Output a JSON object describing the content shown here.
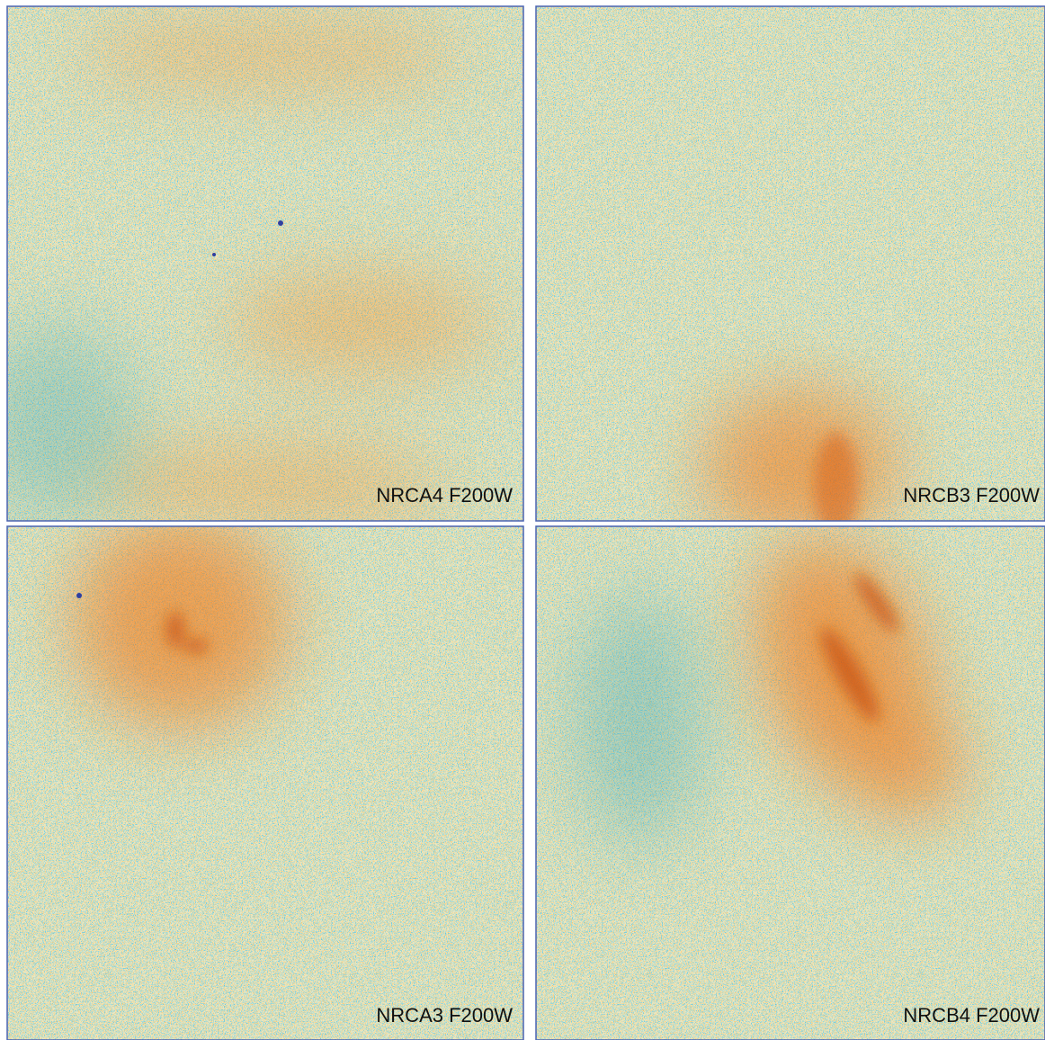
{
  "panels": [
    {
      "label": "NRCA4 F200W"
    },
    {
      "label": "NRCB3 F200W"
    },
    {
      "label": "NRCA3 F200W"
    },
    {
      "label": "NRCB4 F200W"
    }
  ]
}
